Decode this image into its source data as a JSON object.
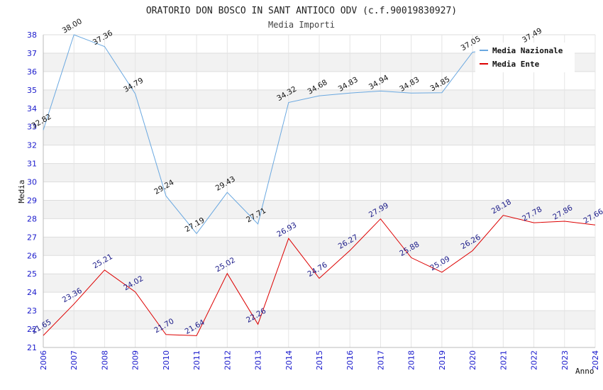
{
  "chart_data": {
    "type": "line",
    "title": "ORATORIO DON BOSCO IN SANT ANTIOCO ODV (c.f.90019830927)",
    "subtitle": "Media Importi",
    "xlabel": "Anno",
    "ylabel": "Media",
    "ylim": [
      21,
      38
    ],
    "yticks": [
      21,
      22,
      23,
      24,
      25,
      26,
      27,
      28,
      29,
      30,
      31,
      32,
      33,
      34,
      35,
      36,
      37,
      38
    ],
    "x": [
      "2006",
      "2007",
      "2008",
      "2009",
      "2010",
      "2011",
      "2012",
      "2013",
      "2014",
      "2015",
      "2016",
      "2017",
      "2018",
      "2019",
      "2020",
      "2021",
      "2022",
      "2023",
      "2024"
    ],
    "grid": true,
    "legend_position": "top-right",
    "series": [
      {
        "name": "Media Nazionale",
        "color": "#6aa8e0",
        "label_color": "#111111",
        "values": [
          32.82,
          38.0,
          37.36,
          34.79,
          29.24,
          27.19,
          29.43,
          27.71,
          34.32,
          34.68,
          34.83,
          34.94,
          34.83,
          34.85,
          37.05,
          null,
          37.49,
          null,
          null
        ],
        "labels": [
          "32.82",
          "38.00",
          "37.36",
          "34.79",
          "29.24",
          "27.19",
          "29.43",
          "27.71",
          "34.32",
          "34.68",
          "34.83",
          "34.94",
          "34.83",
          "34.85",
          "37.05",
          "",
          "37.49",
          "",
          ""
        ]
      },
      {
        "name": "Media Ente",
        "color": "#dd0000",
        "label_color": "#1a1a88",
        "values": [
          21.65,
          23.36,
          25.21,
          24.02,
          21.7,
          21.64,
          25.02,
          22.26,
          26.93,
          24.76,
          26.27,
          27.99,
          25.88,
          25.09,
          26.26,
          28.18,
          27.78,
          27.86,
          27.66
        ],
        "labels": [
          "21.65",
          "23.36",
          "25.21",
          "24.02",
          "21.70",
          "21.64",
          "25.02",
          "22.26",
          "26.93",
          "24.76",
          "26.27",
          "27.99",
          "25.88",
          "25.09",
          "26.26",
          "28.18",
          "27.78",
          "27.86",
          "27.66"
        ]
      }
    ]
  }
}
